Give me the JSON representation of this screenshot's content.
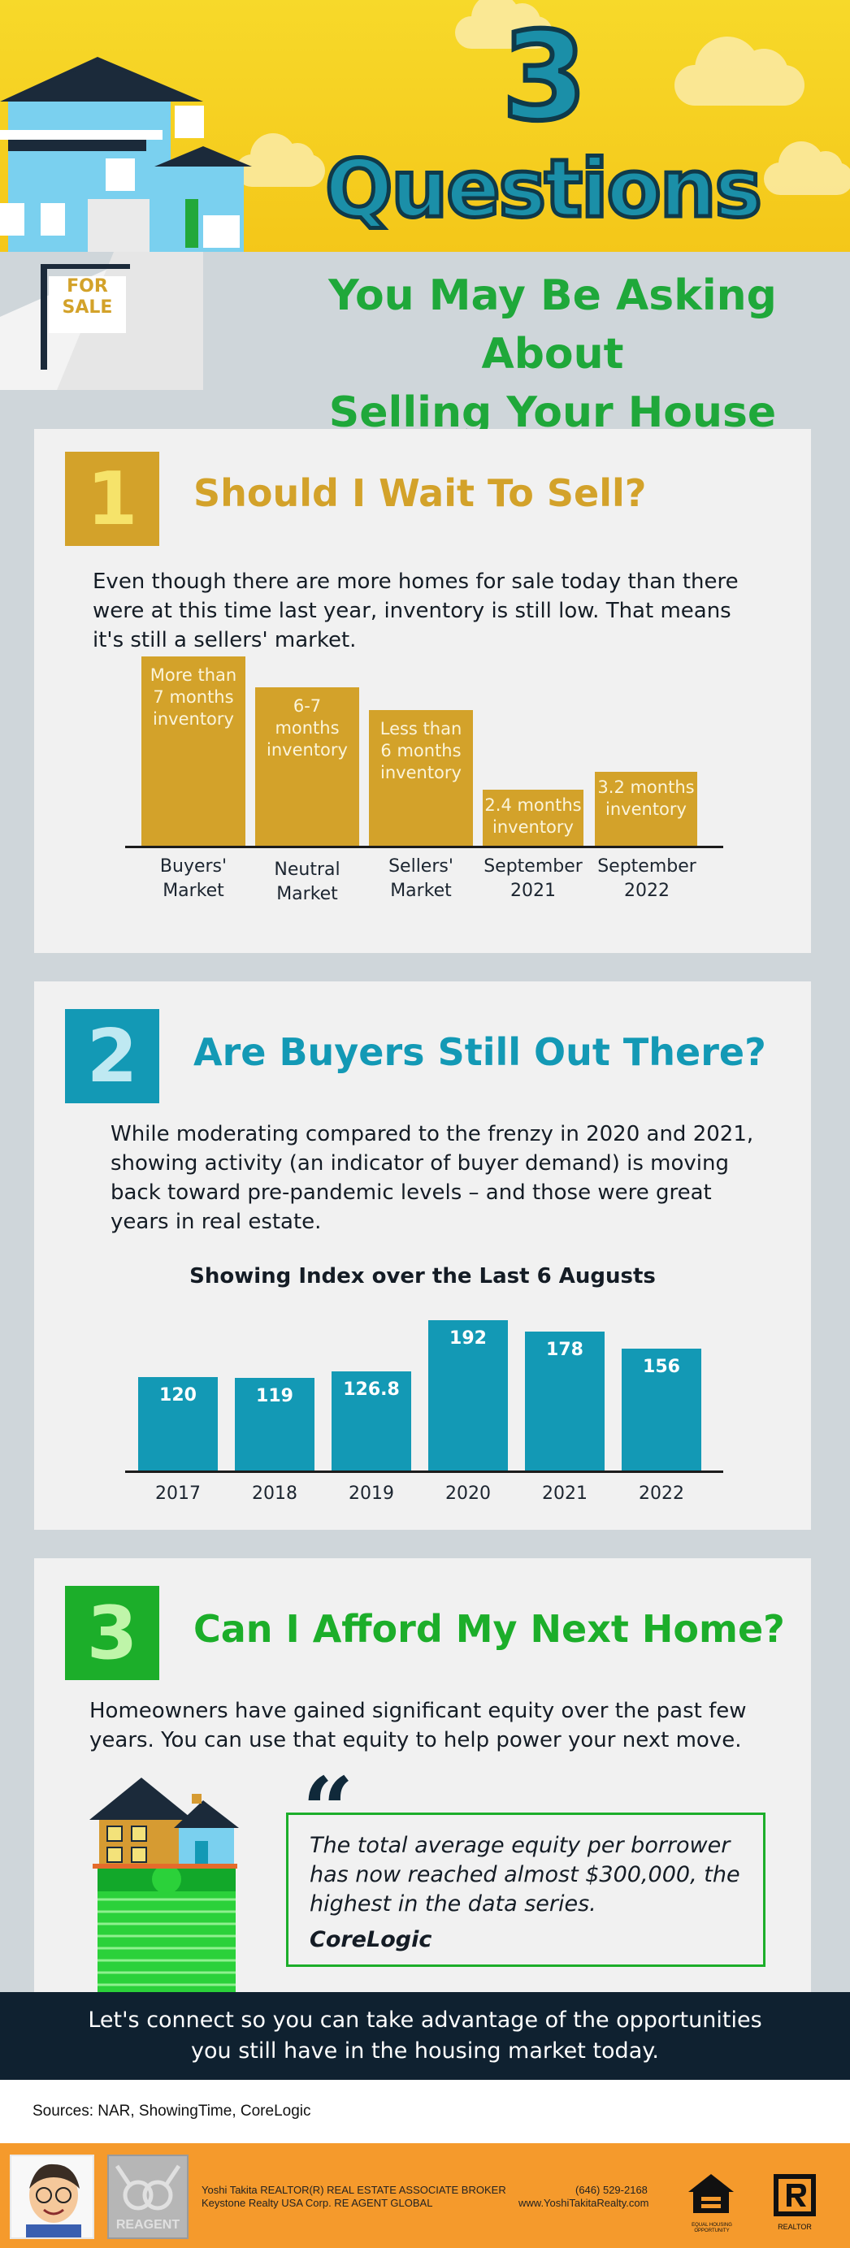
{
  "header": {
    "number": "3",
    "title": "Questions",
    "subtitle_line1": "You May Be Asking About",
    "subtitle_line2": "Selling Your House Today",
    "sign_text_1": "FOR",
    "sign_text_2": "SALE"
  },
  "colors": {
    "gold": "#d3a22a",
    "teal": "#1399b5",
    "green": "#1cae2a",
    "navy": "#0f2130",
    "orange": "#f59a2c"
  },
  "question1": {
    "number": "1",
    "title": "Should I Wait To Sell?",
    "body": "Even though there are more homes for sale today than there were at this time last year, inventory is still low. That means it's still a sellers' market.",
    "chart_bars": [
      {
        "label": "More than 7 months inventory",
        "category_line1": "Buyers'",
        "category_line2": "Market",
        "level": 0.0
      },
      {
        "label": "6-7 months inventory",
        "category_line1": "Neutral",
        "category_line2": "Market",
        "level": 0.0
      },
      {
        "label": "Less than 6 months inventory",
        "category_line1": "Sellers'",
        "category_line2": "Market",
        "level": 0.0
      },
      {
        "label": "2.4 months inventory",
        "category_line1": "September",
        "category_line2": "2021",
        "level": 0.0
      },
      {
        "label": "3.2 months inventory",
        "category_line1": "September",
        "category_line2": "2022",
        "level": 0.0
      }
    ]
  },
  "question2": {
    "number": "2",
    "title": "Are Buyers Still Out There?",
    "body": "While moderating compared to the frenzy in 2020 and 2021, showing activity (an indicator of buyer demand) is moving back toward pre-pandemic levels – and those were great years in real estate."
  },
  "chart_data": {
    "type": "bar",
    "title": "Showing Index over the Last 6 Augusts",
    "categories": [
      "2017",
      "2018",
      "2019",
      "2020",
      "2021",
      "2022"
    ],
    "values": [
      120,
      119,
      126.8,
      192,
      178,
      156
    ],
    "value_labels": [
      "120",
      "119",
      "126.8",
      "192",
      "178",
      "156"
    ],
    "ylim": [
      0,
      210
    ],
    "grid": false,
    "legend": "none"
  },
  "question3": {
    "number": "3",
    "title": "Can I Afford My Next Home?",
    "body": "Homeowners have gained significant equity over the past few years. You can use that equity to help power your next move.",
    "quote_mark": "“",
    "quote": "The total average equity per borrower has now reached almost $300,000, the highest in the data series.",
    "quote_source": "CoreLogic"
  },
  "footer": {
    "cta_line1": "Let's connect so you can take advantage of the opportunities",
    "cta_line2": "you still have in the housing market today.",
    "sources": "Sources: NAR, ShowingTime, CoreLogic"
  },
  "agent": {
    "name_line": "Yoshi Takita REALTOR(R) REAL ESTATE ASSOCIATE BROKER",
    "company_line": "Keystone Realty USA Corp.  RE AGENT GLOBAL",
    "phone": "(646) 529-2168",
    "website": "www.YoshiTakitaRealty.com",
    "logo_text": "REAGENT",
    "eho_text": "EQUAL HOUSING OPPORTUNITY",
    "realtor_text": "REALTOR"
  }
}
